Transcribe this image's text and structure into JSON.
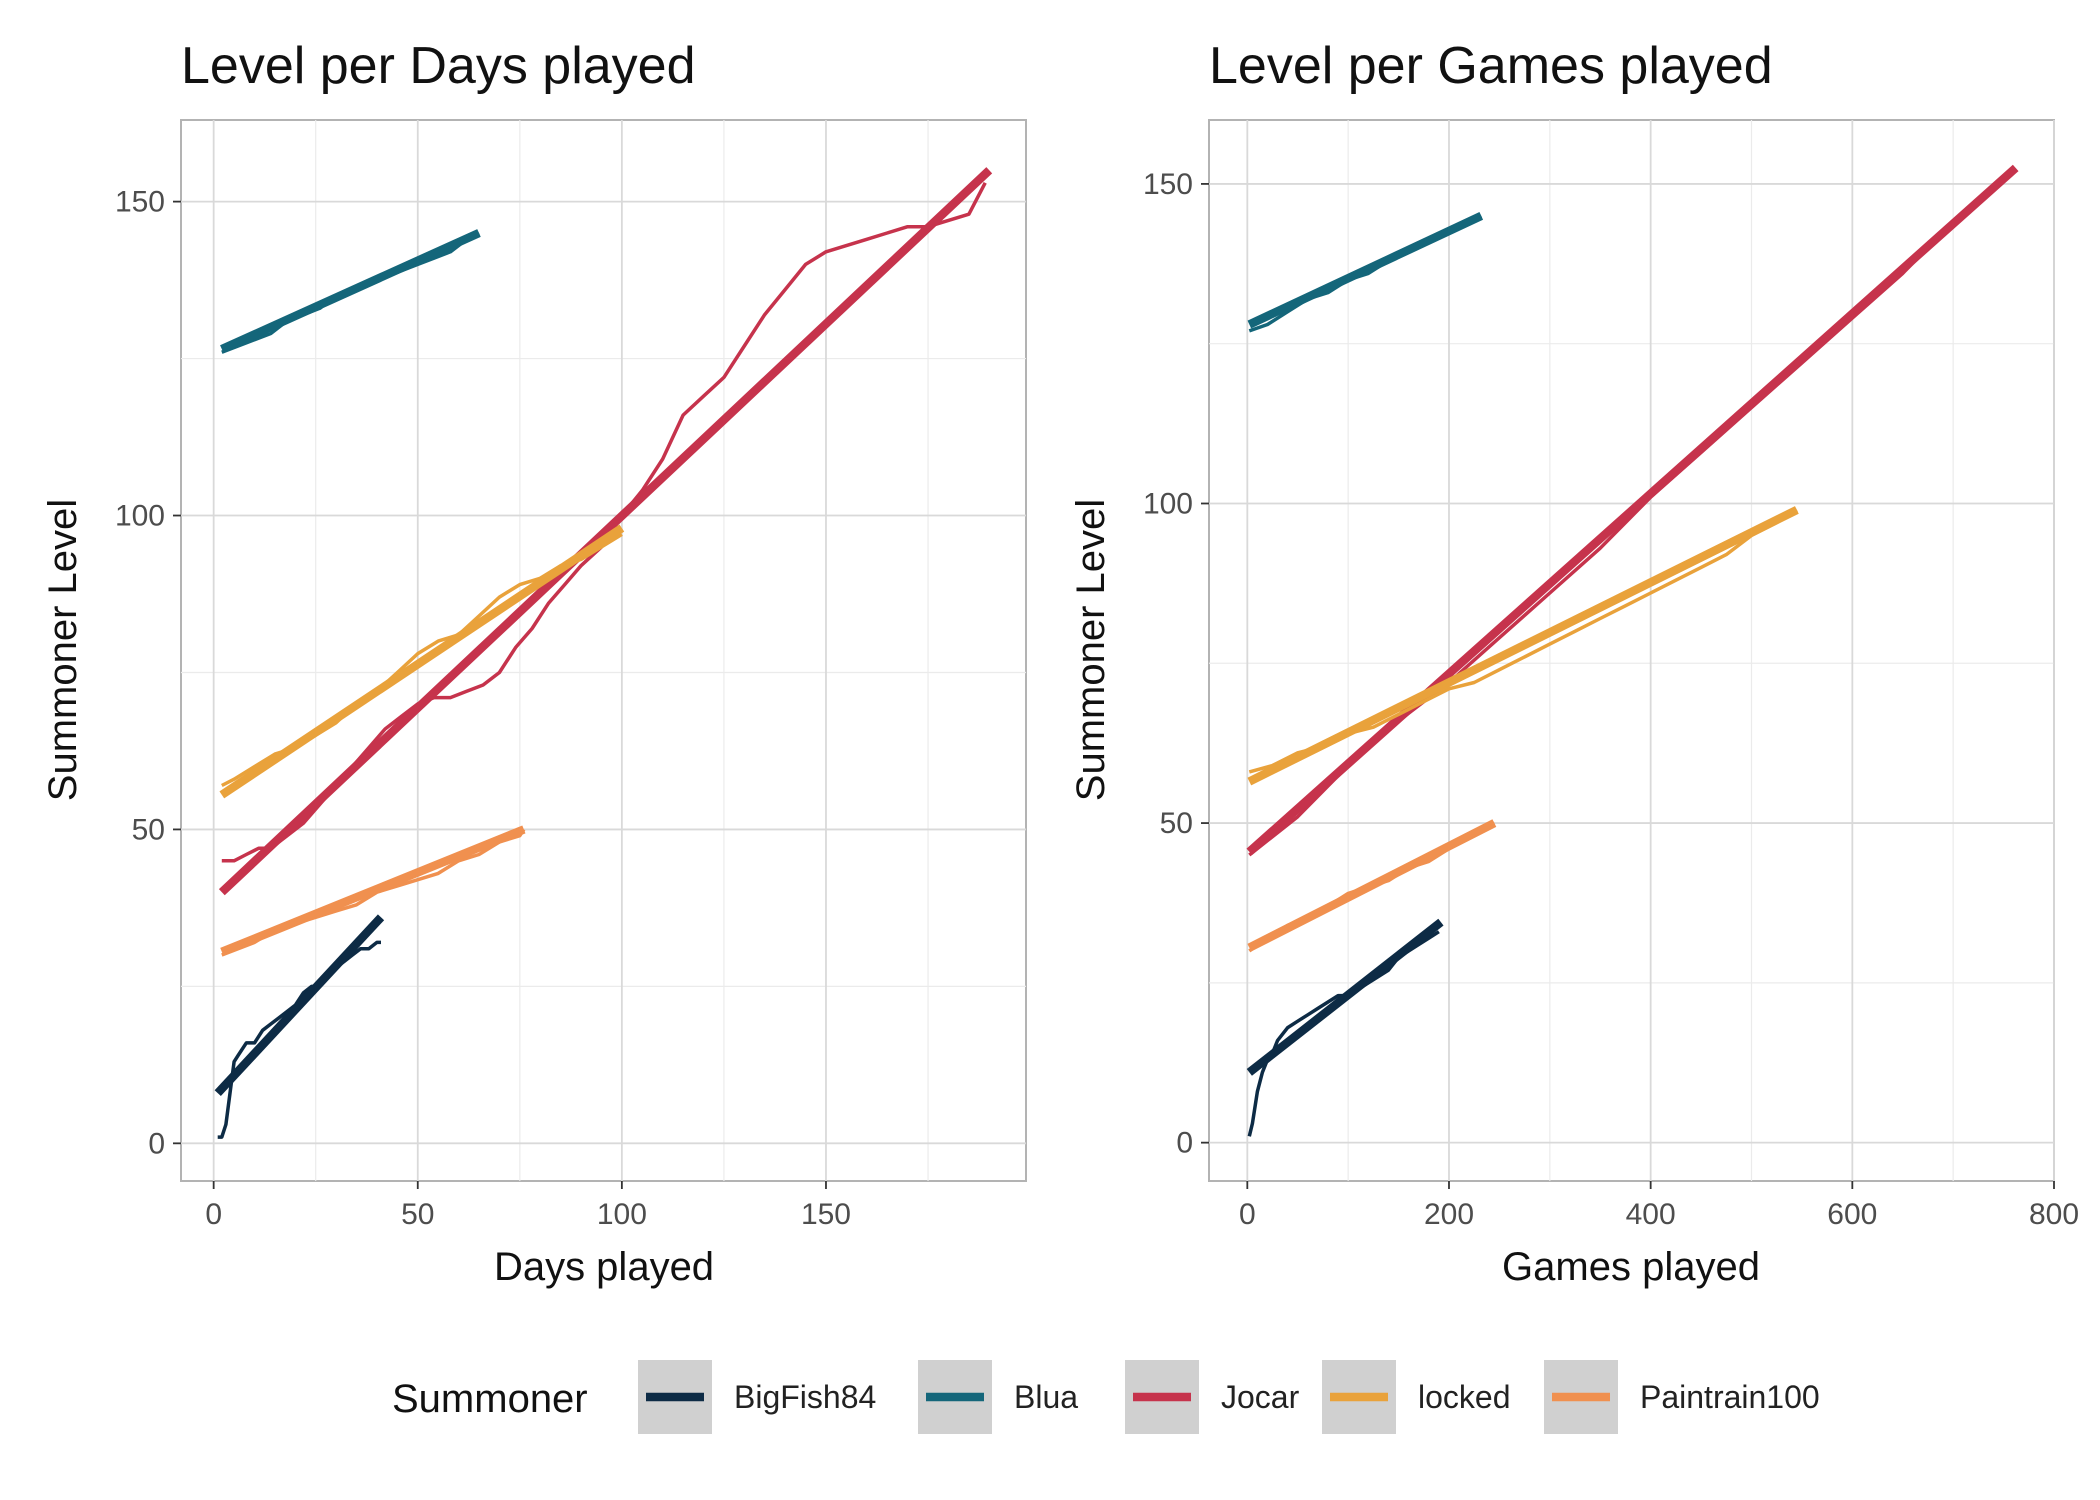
{
  "chart_data": [
    {
      "type": "line",
      "title": "Level per Days played",
      "xlabel": "Days played",
      "ylabel": "Summoner Level",
      "xlim": [
        -8,
        199
      ],
      "ylim": [
        -6,
        163
      ],
      "xticks": [
        0,
        50,
        100,
        150
      ],
      "yticks": [
        0,
        50,
        100,
        150
      ],
      "grid": true,
      "series": [
        {
          "name": "BigFish84",
          "observed": [
            [
              1,
              1
            ],
            [
              2,
              1
            ],
            [
              3,
              3
            ],
            [
              4,
              8
            ],
            [
              5,
              13
            ],
            [
              6,
              14
            ],
            [
              8,
              16
            ],
            [
              10,
              16
            ],
            [
              12,
              18
            ],
            [
              14,
              19
            ],
            [
              16,
              20
            ],
            [
              18,
              21
            ],
            [
              20,
              22
            ],
            [
              22,
              24
            ],
            [
              24,
              25
            ],
            [
              26,
              25
            ],
            [
              28,
              27
            ],
            [
              30,
              28
            ],
            [
              32,
              29
            ],
            [
              34,
              30
            ],
            [
              36,
              31
            ],
            [
              38,
              31
            ],
            [
              40,
              32
            ],
            [
              41,
              32
            ]
          ],
          "trend": [
            [
              1,
              8
            ],
            [
              41,
              36
            ]
          ]
        },
        {
          "name": "Blua",
          "observed": [
            [
              2,
              126
            ],
            [
              6,
              127
            ],
            [
              10,
              128
            ],
            [
              14,
              129
            ],
            [
              18,
              131
            ],
            [
              22,
              132
            ],
            [
              26,
              133
            ],
            [
              30,
              135
            ],
            [
              34,
              136
            ],
            [
              38,
              137
            ],
            [
              42,
              138
            ],
            [
              46,
              139
            ],
            [
              50,
              140
            ],
            [
              54,
              141
            ],
            [
              58,
              142
            ],
            [
              62,
              144
            ],
            [
              65,
              145
            ]
          ],
          "trend": [
            [
              2,
              126.5
            ],
            [
              65,
              145
            ]
          ]
        },
        {
          "name": "Jocar",
          "observed": [
            [
              2,
              45
            ],
            [
              5,
              45
            ],
            [
              8,
              46
            ],
            [
              11,
              47
            ],
            [
              14,
              47
            ],
            [
              18,
              49
            ],
            [
              22,
              51
            ],
            [
              26,
              54
            ],
            [
              30,
              57
            ],
            [
              34,
              60
            ],
            [
              38,
              63
            ],
            [
              42,
              66
            ],
            [
              46,
              68
            ],
            [
              50,
              70
            ],
            [
              54,
              71
            ],
            [
              58,
              71
            ],
            [
              62,
              72
            ],
            [
              66,
              73
            ],
            [
              70,
              75
            ],
            [
              74,
              79
            ],
            [
              78,
              82
            ],
            [
              82,
              86
            ],
            [
              86,
              89
            ],
            [
              90,
              92
            ],
            [
              95,
              95
            ],
            [
              100,
              100
            ],
            [
              105,
              104
            ],
            [
              110,
              109
            ],
            [
              115,
              116
            ],
            [
              120,
              119
            ],
            [
              125,
              122
            ],
            [
              130,
              127
            ],
            [
              135,
              132
            ],
            [
              140,
              136
            ],
            [
              145,
              140
            ],
            [
              150,
              142
            ],
            [
              155,
              143
            ],
            [
              160,
              144
            ],
            [
              165,
              145
            ],
            [
              170,
              146
            ],
            [
              175,
              146
            ],
            [
              180,
              147
            ],
            [
              185,
              148
            ],
            [
              189,
              153
            ]
          ],
          "trend": [
            [
              2,
              40
            ],
            [
              190,
              155
            ]
          ]
        },
        {
          "name": "locked",
          "observed": [
            [
              2,
              57
            ],
            [
              5,
              58
            ],
            [
              10,
              60
            ],
            [
              15,
              62
            ],
            [
              20,
              63
            ],
            [
              25,
              65
            ],
            [
              30,
              67
            ],
            [
              35,
              70
            ],
            [
              40,
              72
            ],
            [
              45,
              75
            ],
            [
              50,
              78
            ],
            [
              55,
              80
            ],
            [
              60,
              81
            ],
            [
              65,
              84
            ],
            [
              70,
              87
            ],
            [
              75,
              89
            ],
            [
              80,
              90
            ],
            [
              85,
              92
            ],
            [
              90,
              93
            ],
            [
              95,
              95
            ],
            [
              100,
              97
            ]
          ],
          "trend": [
            [
              2,
              55.5
            ],
            [
              100,
              98
            ]
          ]
        },
        {
          "name": "Paintrain100",
          "observed": [
            [
              2,
              30
            ],
            [
              6,
              31
            ],
            [
              10,
              32
            ],
            [
              15,
              34
            ],
            [
              20,
              35
            ],
            [
              25,
              36
            ],
            [
              30,
              37
            ],
            [
              35,
              38
            ],
            [
              40,
              40
            ],
            [
              45,
              41
            ],
            [
              50,
              42
            ],
            [
              55,
              43
            ],
            [
              60,
              45
            ],
            [
              65,
              46
            ],
            [
              70,
              48
            ],
            [
              75,
              49
            ],
            [
              76,
              50
            ]
          ],
          "trend": [
            [
              2,
              30.5
            ],
            [
              76,
              50
            ]
          ]
        }
      ]
    },
    {
      "type": "line",
      "title": "Level per Games played",
      "xlabel": "Games played",
      "ylabel": "Summoner Level",
      "xlim": [
        -38,
        800
      ],
      "ylim": [
        -6,
        160
      ],
      "xticks": [
        0,
        200,
        400,
        600,
        800
      ],
      "yticks": [
        0,
        50,
        100,
        150
      ],
      "grid": true,
      "series": [
        {
          "name": "BigFish84",
          "observed": [
            [
              2,
              1
            ],
            [
              5,
              3
            ],
            [
              8,
              6
            ],
            [
              10,
              8
            ],
            [
              15,
              11
            ],
            [
              20,
              13
            ],
            [
              25,
              14
            ],
            [
              30,
              16
            ],
            [
              40,
              18
            ],
            [
              50,
              19
            ],
            [
              60,
              20
            ],
            [
              70,
              21
            ],
            [
              80,
              22
            ],
            [
              90,
              23
            ],
            [
              100,
              23
            ],
            [
              110,
              24
            ],
            [
              120,
              25
            ],
            [
              130,
              26
            ],
            [
              140,
              27
            ],
            [
              150,
              29
            ],
            [
              160,
              30
            ],
            [
              170,
              31
            ],
            [
              180,
              32
            ],
            [
              190,
              33
            ]
          ],
          "trend": [
            [
              2,
              11
            ],
            [
              192,
              34.5
            ]
          ]
        },
        {
          "name": "Blua",
          "observed": [
            [
              2,
              127
            ],
            [
              20,
              128
            ],
            [
              40,
              130
            ],
            [
              60,
              132
            ],
            [
              80,
              133
            ],
            [
              100,
              135
            ],
            [
              120,
              136
            ],
            [
              140,
              138
            ],
            [
              160,
              140
            ],
            [
              180,
              141
            ],
            [
              200,
              143
            ],
            [
              220,
              144
            ],
            [
              232,
              145
            ]
          ],
          "trend": [
            [
              2,
              128
            ],
            [
              232,
              145
            ]
          ]
        },
        {
          "name": "Jocar",
          "observed": [
            [
              2,
              45
            ],
            [
              50,
              51
            ],
            [
              100,
              59
            ],
            [
              150,
              66
            ],
            [
              200,
              72
            ],
            [
              250,
              79
            ],
            [
              300,
              86
            ],
            [
              350,
              93
            ],
            [
              400,
              101
            ],
            [
              450,
              108
            ],
            [
              500,
              115
            ],
            [
              550,
              122
            ],
            [
              600,
              129
            ],
            [
              650,
              136
            ],
            [
              700,
              144
            ],
            [
              760,
              152
            ]
          ],
          "trend": [
            [
              2,
              45.5
            ],
            [
              762,
              152.5
            ]
          ]
        },
        {
          "name": "locked",
          "observed": [
            [
              2,
              58
            ],
            [
              25,
              59
            ],
            [
              50,
              61
            ],
            [
              75,
              62
            ],
            [
              100,
              64
            ],
            [
              125,
              65
            ],
            [
              150,
              67
            ],
            [
              175,
              69
            ],
            [
              200,
              71
            ],
            [
              225,
              72
            ],
            [
              250,
              74
            ],
            [
              275,
              76
            ],
            [
              300,
              78
            ],
            [
              325,
              80
            ],
            [
              350,
              82
            ],
            [
              375,
              84
            ],
            [
              400,
              86
            ],
            [
              425,
              88
            ],
            [
              450,
              90
            ],
            [
              475,
              92
            ],
            [
              500,
              95
            ],
            [
              525,
              97
            ],
            [
              545,
              99
            ]
          ],
          "trend": [
            [
              2,
              56.5
            ],
            [
              545,
              99
            ]
          ]
        },
        {
          "name": "Paintrain100",
          "observed": [
            [
              2,
              30
            ],
            [
              20,
              32
            ],
            [
              40,
              34
            ],
            [
              60,
              35
            ],
            [
              80,
              37
            ],
            [
              100,
              39
            ],
            [
              120,
              40
            ],
            [
              140,
              41
            ],
            [
              160,
              43
            ],
            [
              180,
              44
            ],
            [
              200,
              46
            ],
            [
              220,
              48
            ],
            [
              245,
              50
            ]
          ],
          "trend": [
            [
              2,
              30.5
            ],
            [
              245,
              50
            ]
          ]
        }
      ]
    }
  ],
  "legend": {
    "title": "Summoner",
    "placement": "bottom",
    "entries": [
      {
        "name": "BigFish84",
        "color": "#0d2b45"
      },
      {
        "name": "Blua",
        "color": "#14667a"
      },
      {
        "name": "Jocar",
        "color": "#c6334c"
      },
      {
        "name": "locked",
        "color": "#e9a23b"
      },
      {
        "name": "Paintrain100",
        "color": "#f0904f"
      }
    ]
  }
}
